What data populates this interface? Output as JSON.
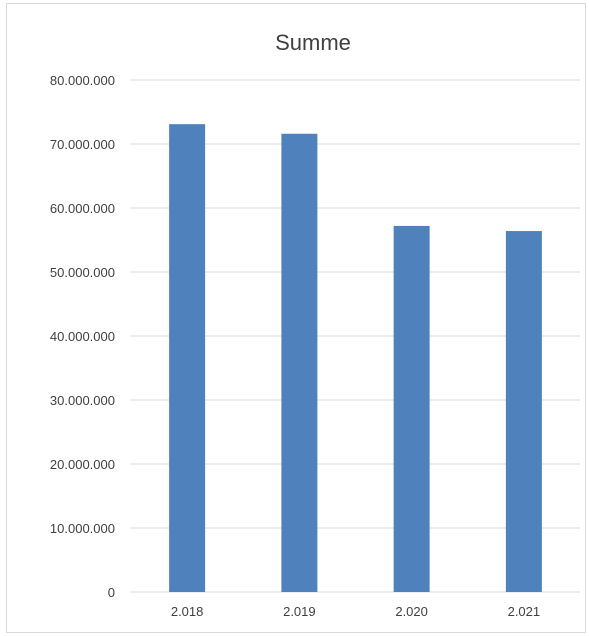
{
  "chart_data": {
    "type": "bar",
    "title": "Summe",
    "categories": [
      "2.018",
      "2.019",
      "2.020",
      "2.021"
    ],
    "values": [
      73100000,
      71600000,
      57200000,
      56400000
    ],
    "ylim": [
      0,
      80000000
    ],
    "y_ticks": [
      "0",
      "10.000.000",
      "20.000.000",
      "30.000.000",
      "40.000.000",
      "50.000.000",
      "60.000.000",
      "70.000.000",
      "80.000.000"
    ],
    "grid": true,
    "legend": "none",
    "bar_color": "#4f81bd",
    "grid_color": "#d9d9d9"
  }
}
